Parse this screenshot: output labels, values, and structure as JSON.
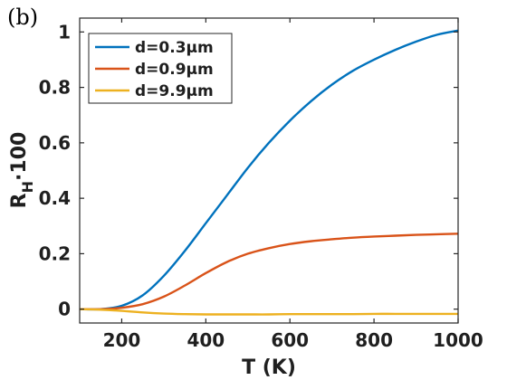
{
  "panel_label": "(b)",
  "chart_data": {
    "type": "line",
    "xlabel": "T (K)",
    "ylabel": {
      "base": "R",
      "sub": "H",
      "rest": "·100"
    },
    "xlim": [
      100,
      1000
    ],
    "ylim": [
      -0.05,
      1.05
    ],
    "xticks": [
      200,
      400,
      600,
      800,
      1000
    ],
    "xtick_labels": [
      "200",
      "400",
      "600",
      "800",
      "1000"
    ],
    "yticks": [
      0,
      0.2,
      0.4,
      0.6,
      0.8,
      1
    ],
    "ytick_labels": [
      "0",
      "0.2",
      "0.4",
      "0.6",
      "0.8",
      "1"
    ],
    "grid": false,
    "legend_position": "top-left",
    "x": [
      100,
      150,
      200,
      250,
      300,
      350,
      400,
      450,
      500,
      550,
      600,
      650,
      700,
      750,
      800,
      850,
      900,
      950,
      1000
    ],
    "series": [
      {
        "name": "d=0.3μm",
        "color": "#0072BD",
        "values": [
          0.0,
          0.0,
          0.012,
          0.05,
          0.12,
          0.21,
          0.31,
          0.41,
          0.51,
          0.6,
          0.68,
          0.75,
          0.81,
          0.86,
          0.9,
          0.935,
          0.965,
          0.99,
          1.005
        ]
      },
      {
        "name": "d=0.9μm",
        "color": "#D95319",
        "values": [
          0.0,
          0.0,
          0.005,
          0.018,
          0.045,
          0.085,
          0.13,
          0.17,
          0.2,
          0.22,
          0.235,
          0.245,
          0.252,
          0.258,
          0.262,
          0.265,
          0.268,
          0.27,
          0.272
        ]
      },
      {
        "name": "d=9.9μm",
        "color": "#EDB120",
        "values": [
          0.0,
          -0.002,
          -0.006,
          -0.012,
          -0.016,
          -0.018,
          -0.019,
          -0.019,
          -0.019,
          -0.019,
          -0.018,
          -0.018,
          -0.018,
          -0.018,
          -0.017,
          -0.017,
          -0.017,
          -0.017,
          -0.017
        ]
      }
    ]
  }
}
